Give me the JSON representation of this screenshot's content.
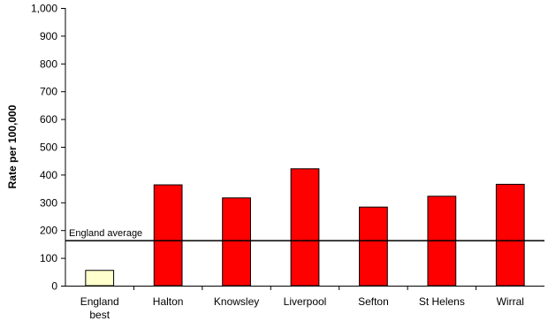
{
  "chart_data": {
    "type": "bar",
    "categories": [
      "England\nbest",
      "Halton",
      "Knowsley",
      "Liverpool",
      "Sefton",
      "St Helens",
      "Wirral"
    ],
    "values": [
      55,
      363,
      316,
      421,
      283,
      322,
      365
    ],
    "bar_colors": [
      "#ffffcc",
      "#ff0000",
      "#ff0000",
      "#ff0000",
      "#ff0000",
      "#ff0000",
      "#ff0000"
    ],
    "bar_outline": "#000000",
    "title": "",
    "xlabel": "",
    "ylabel": "Rate per 100,000",
    "ylim": [
      0,
      1000
    ],
    "yticks": [
      0,
      100,
      200,
      300,
      400,
      500,
      600,
      700,
      800,
      900,
      1000
    ],
    "ytick_labels": [
      "0",
      "100",
      "200",
      "300",
      "400",
      "500",
      "600",
      "700",
      "800",
      "900",
      "1,000"
    ],
    "grid": false,
    "legend": "none",
    "reference_line": {
      "label": "England average",
      "value": 162,
      "color": "#000000"
    }
  }
}
